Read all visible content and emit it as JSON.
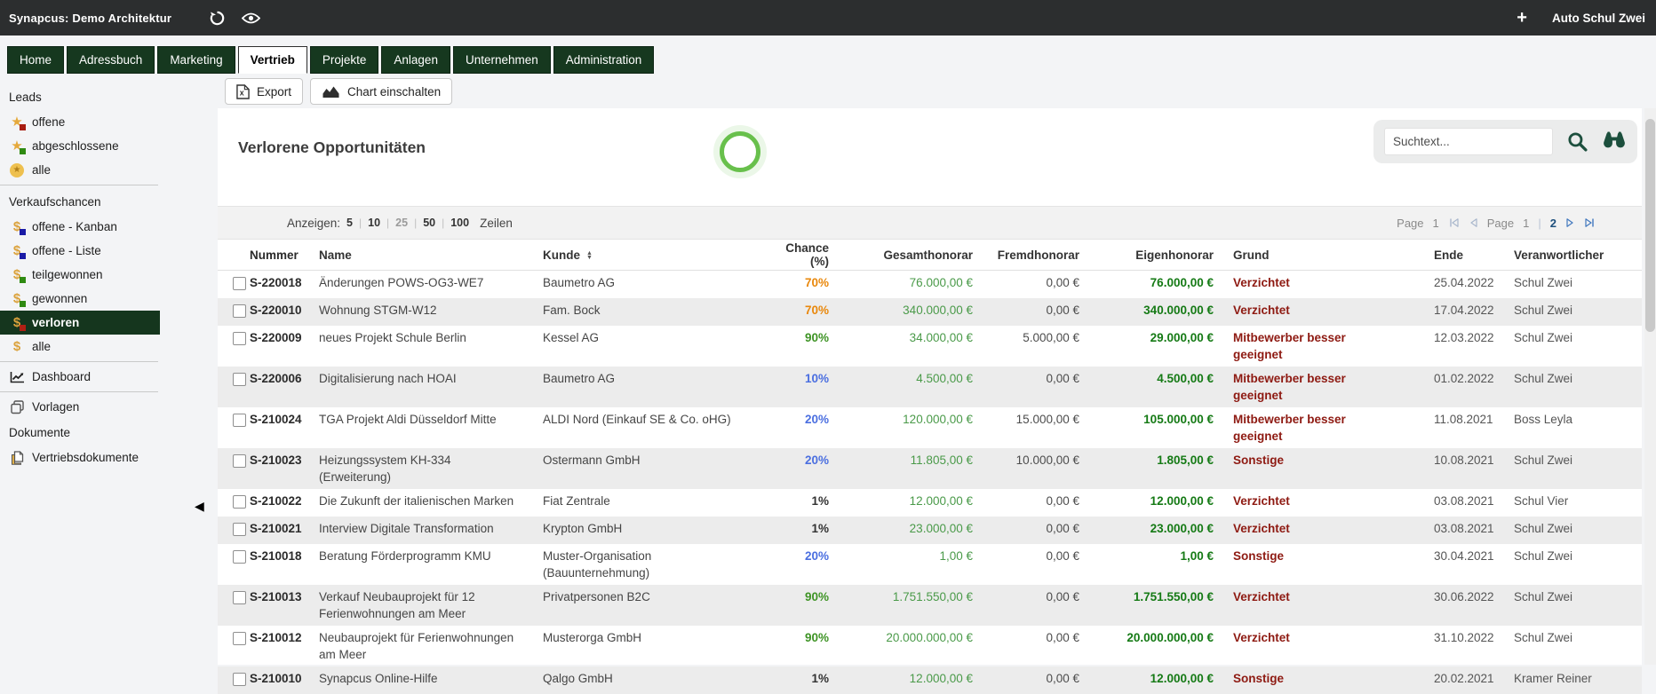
{
  "topbar": {
    "app_title": "Synapcus: Demo Architektur",
    "user": "Auto Schul Zwei"
  },
  "tabs": [
    {
      "label": "Home"
    },
    {
      "label": "Adressbuch"
    },
    {
      "label": "Marketing"
    },
    {
      "label": "Vertrieb",
      "active": true
    },
    {
      "label": "Projekte"
    },
    {
      "label": "Anlagen"
    },
    {
      "label": "Unternehmen"
    },
    {
      "label": "Administration"
    }
  ],
  "sidebar": {
    "sections": [
      {
        "header": "Leads",
        "items": [
          {
            "label": "offene",
            "icon": "star-red"
          },
          {
            "label": "abgeschlossene",
            "icon": "star-green"
          },
          {
            "label": "alle",
            "icon": "star-circle"
          }
        ]
      },
      {
        "header": "Verkaufschancen",
        "divider": true,
        "items": [
          {
            "label": "offene - Kanban",
            "icon": "dollar-blue"
          },
          {
            "label": "offene - Liste",
            "icon": "dollar-blue"
          },
          {
            "label": "teilgewonnen",
            "icon": "dollar-green"
          },
          {
            "label": "gewonnen",
            "icon": "dollar-green"
          },
          {
            "label": "verloren",
            "icon": "dollar-red",
            "active": true
          },
          {
            "label": "alle",
            "icon": "dollar"
          }
        ]
      },
      {
        "divider": true,
        "items": [
          {
            "label": "Dashboard",
            "icon": "chart"
          }
        ]
      },
      {
        "divider": true,
        "items": [
          {
            "label": "Vorlagen",
            "icon": "copy"
          }
        ]
      },
      {
        "header": "Dokumente",
        "items": [
          {
            "label": "Vertriebsdokumente",
            "icon": "documents"
          }
        ]
      }
    ]
  },
  "toolbar": {
    "export_label": "Export",
    "chart_label": "Chart einschalten"
  },
  "main": {
    "title": "Verlorene Opportunitäten",
    "search_placeholder": "Suchtext...",
    "rows_control": {
      "prefix": "Anzeigen:",
      "options": [
        "5",
        "10",
        "25",
        "50",
        "100"
      ],
      "selected": "25",
      "suffix": "Zeilen"
    },
    "pagination": {
      "label1": "Page",
      "value1": "1",
      "label2": "Page",
      "current": "1",
      "last": "2"
    }
  },
  "table": {
    "headers": [
      "Nummer",
      "Name",
      "Kunde",
      "Chance (%)",
      "Gesamthonorar",
      "Fremdhonorar",
      "Eigenhonorar",
      "Grund",
      "Ende",
      "Veranwortlicher"
    ],
    "rows": [
      {
        "nummer": "S-220018",
        "name": "Änderungen POWS-OG3-WE7",
        "kunde": "Baumetro AG",
        "chance": "70%",
        "chance_color": "orange",
        "gesamt": "76.000,00 €",
        "fremd": "0,00 €",
        "eigen": "76.000,00 €",
        "grund": "Verzichtet",
        "ende": "25.04.2022",
        "verantwortlicher": "Schul Zwei"
      },
      {
        "nummer": "S-220010",
        "name": "Wohnung STGM-W12",
        "kunde": "Fam. Bock",
        "chance": "70%",
        "chance_color": "orange",
        "gesamt": "340.000,00 €",
        "fremd": "0,00 €",
        "eigen": "340.000,00 €",
        "grund": "Verzichtet",
        "ende": "17.04.2022",
        "verantwortlicher": "Schul Zwei"
      },
      {
        "nummer": "S-220009",
        "name": "neues Projekt Schule Berlin",
        "kunde": "Kessel AG",
        "chance": "90%",
        "chance_color": "green",
        "gesamt": "34.000,00 €",
        "fremd": "5.000,00 €",
        "eigen": "29.000,00 €",
        "grund": "Mitbewerber besser geeignet",
        "ende": "12.03.2022",
        "verantwortlicher": "Schul Zwei"
      },
      {
        "nummer": "S-220006",
        "name": "Digitalisierung nach HOAI",
        "kunde": "Baumetro AG",
        "chance": "10%",
        "chance_color": "blue",
        "gesamt": "4.500,00 €",
        "fremd": "0,00 €",
        "eigen": "4.500,00 €",
        "grund": "Mitbewerber besser geeignet",
        "ende": "01.02.2022",
        "verantwortlicher": "Schul Zwei"
      },
      {
        "nummer": "S-210024",
        "name": "TGA Projekt Aldi Düsseldorf Mitte",
        "kunde": "ALDI Nord (Einkauf SE & Co. oHG)",
        "chance": "20%",
        "chance_color": "blue",
        "gesamt": "120.000,00 €",
        "fremd": "15.000,00 €",
        "eigen": "105.000,00 €",
        "grund": "Mitbewerber besser geeignet",
        "ende": "11.08.2021",
        "verantwortlicher": "Boss Leyla"
      },
      {
        "nummer": "S-210023",
        "name": "Heizungssystem KH-334 (Erweiterung)",
        "kunde": "Ostermann GmbH",
        "chance": "20%",
        "chance_color": "blue",
        "gesamt": "11.805,00 €",
        "fremd": "10.000,00 €",
        "eigen": "1.805,00 €",
        "grund": "Sonstige",
        "ende": "10.08.2021",
        "verantwortlicher": "Schul Zwei"
      },
      {
        "nummer": "S-210022",
        "name": "Die Zukunft der italienischen Marken",
        "kunde": "Fiat Zentrale",
        "chance": "1%",
        "chance_color": "dark",
        "gesamt": "12.000,00 €",
        "fremd": "0,00 €",
        "eigen": "12.000,00 €",
        "grund": "Verzichtet",
        "ende": "03.08.2021",
        "verantwortlicher": "Schul Vier"
      },
      {
        "nummer": "S-210021",
        "name": "Interview Digitale Transformation",
        "kunde": "Krypton GmbH",
        "chance": "1%",
        "chance_color": "dark",
        "gesamt": "23.000,00 €",
        "fremd": "0,00 €",
        "eigen": "23.000,00 €",
        "grund": "Verzichtet",
        "ende": "03.08.2021",
        "verantwortlicher": "Schul Zwei"
      },
      {
        "nummer": "S-210018",
        "name": "Beratung Förderprogramm KMU",
        "kunde": "Muster-Organisation (Bauunternehmung)",
        "chance": "20%",
        "chance_color": "blue",
        "gesamt": "1,00 €",
        "fremd": "0,00 €",
        "eigen": "1,00 €",
        "grund": "Sonstige",
        "ende": "30.04.2021",
        "verantwortlicher": "Schul Zwei"
      },
      {
        "nummer": "S-210013",
        "name": "Verkauf Neubauprojekt für 12 Ferienwohnungen am Meer",
        "kunde": "Privatpersonen B2C",
        "chance": "90%",
        "chance_color": "green",
        "gesamt": "1.751.550,00 €",
        "fremd": "0,00 €",
        "eigen": "1.751.550,00 €",
        "grund": "Verzichtet",
        "ende": "30.06.2022",
        "verantwortlicher": "Schul Zwei"
      },
      {
        "nummer": "S-210012",
        "name": "Neubauprojekt für Ferienwohnungen am Meer",
        "kunde": "Musterorga GmbH",
        "chance": "90%",
        "chance_color": "green",
        "gesamt": "20.000.000,00 €",
        "fremd": "0,00 €",
        "eigen": "20.000.000,00 €",
        "grund": "Verzichtet",
        "ende": "31.10.2022",
        "verantwortlicher": "Schul Zwei"
      },
      {
        "nummer": "S-210010",
        "name": "Synapcus Online-Hilfe",
        "kunde": "Qalgo GmbH",
        "chance": "1%",
        "chance_color": "dark",
        "gesamt": "12.000,00 €",
        "fremd": "0,00 €",
        "eigen": "12.000,00 €",
        "grund": "Sonstige",
        "ende": "20.02.2021",
        "verantwortlicher": "Kramer Reiner"
      }
    ]
  },
  "colors": {
    "brand_dark_green": "#16381f",
    "active_item_green": "#15361e",
    "chance_orange": "#e9880c",
    "chance_green": "#3f9426",
    "chance_blue": "#4b6fe0",
    "money_green": "#4a9a49",
    "money_green_bold": "#157a15",
    "grund_maroon": "#8e1a12",
    "spinner_green": "#68c04c",
    "search_icon_green": "#1c4f3d"
  }
}
